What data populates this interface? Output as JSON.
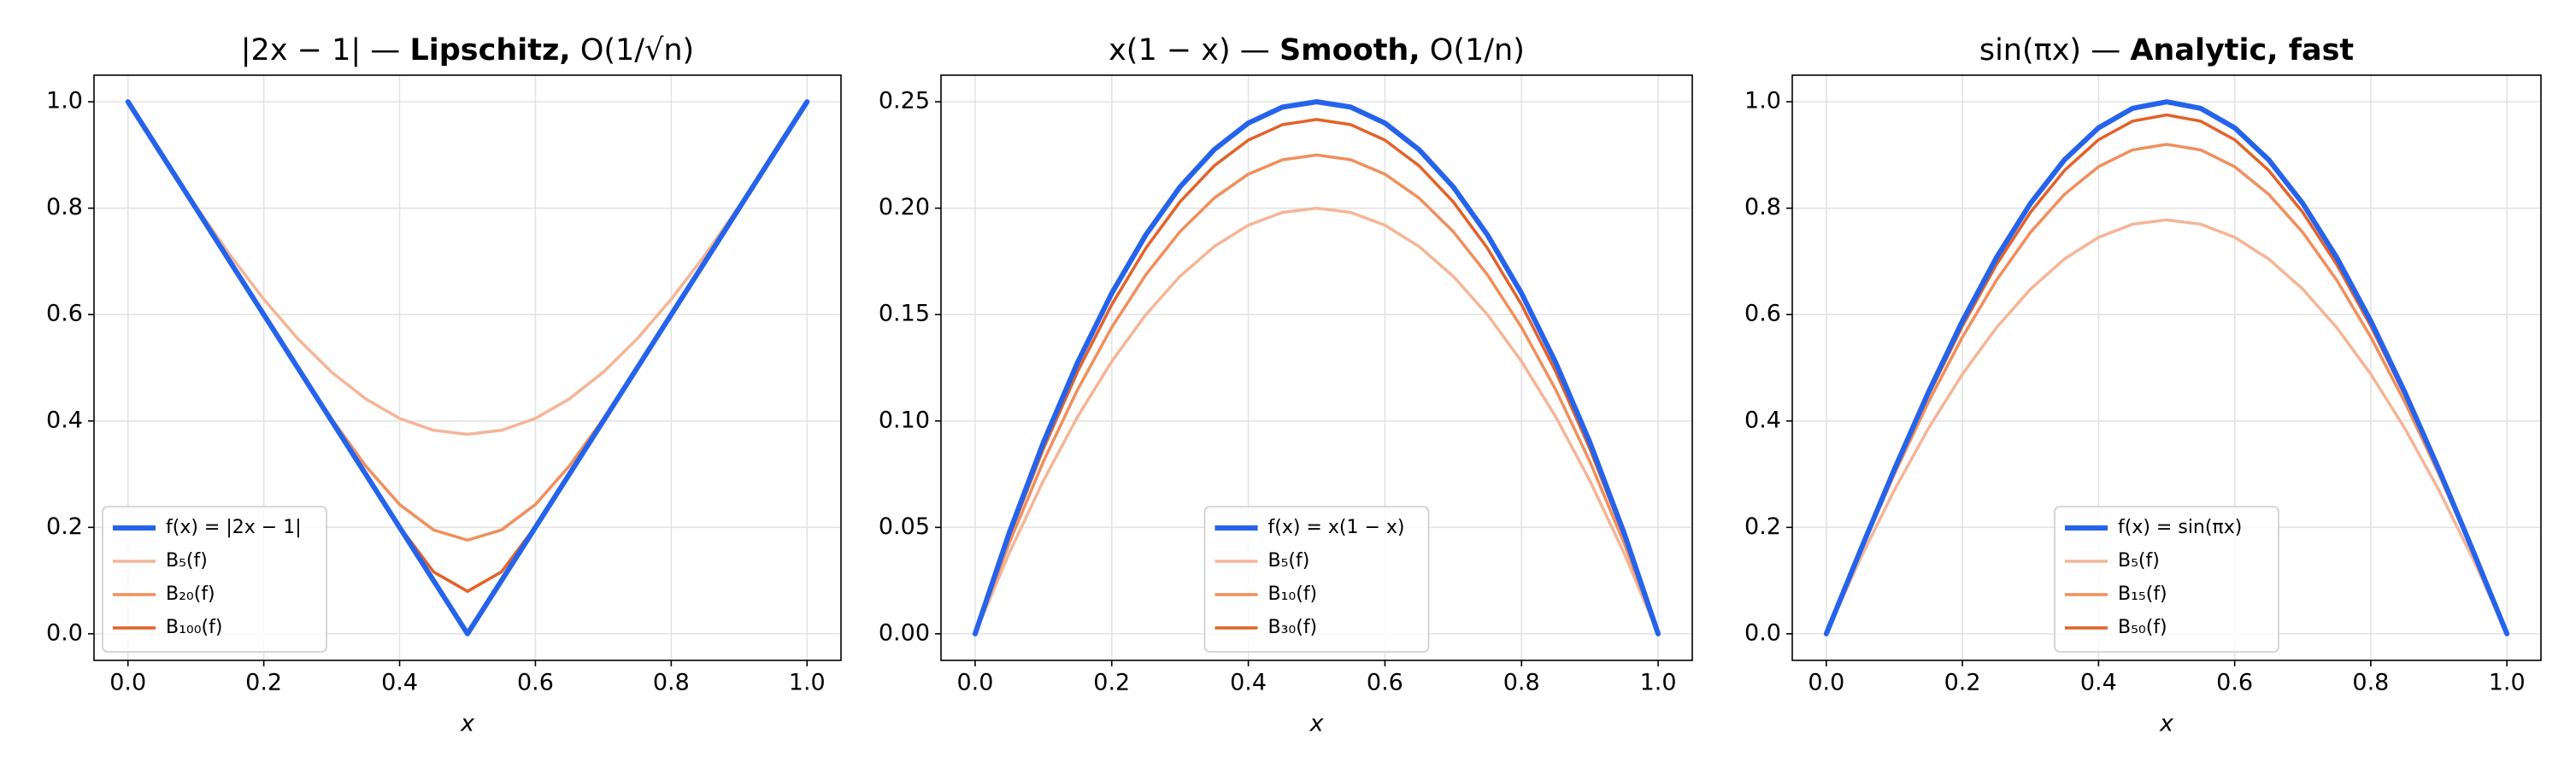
{
  "chart_data": [
    {
      "type": "line",
      "title": [
        {
          "text": "|2x − 1| — ",
          "bold": false
        },
        {
          "text": "Lipschitz,",
          "bold": true
        },
        {
          "text": " O(1/√n)",
          "bold": false
        }
      ],
      "x_label": "x",
      "x": [
        0,
        0.05,
        0.1,
        0.15,
        0.2,
        0.25,
        0.3,
        0.35,
        0.4,
        0.45,
        0.5,
        0.55,
        0.6,
        0.65,
        0.7,
        0.75,
        0.8,
        0.85,
        0.9,
        0.95,
        1
      ],
      "series": [
        {
          "name": "f(x) = |2x − 1|",
          "color": "#2563eb",
          "width": 6,
          "values": [
            1,
            0.9,
            0.8,
            0.7,
            0.6,
            0.5,
            0.4,
            0.3,
            0.2,
            0.1,
            0,
            0.1,
            0.2,
            0.3,
            0.4,
            0.5,
            0.6,
            0.7,
            0.8,
            0.9,
            1
          ]
        },
        {
          "name": "B₅(f)",
          "color": "#f5b596",
          "width": 3.5,
          "values": [
            1,
            0.9005,
            0.804,
            0.7125,
            0.6288,
            0.5547,
            0.4918,
            0.4415,
            0.4048,
            0.3825,
            0.375,
            0.3825,
            0.4048,
            0.4415,
            0.4918,
            0.5547,
            0.6288,
            0.7125,
            0.804,
            0.9005,
            1
          ]
        },
        {
          "name": "B₂₀(f)",
          "color": "#f08f5c",
          "width": 3.5,
          "values": [
            1,
            0.9,
            0.8,
            0.7,
            0.6,
            0.5006,
            0.4039,
            0.3154,
            0.243,
            0.1952,
            0.176,
            0.1952,
            0.243,
            0.3154,
            0.4039,
            0.5006,
            0.6,
            0.7,
            0.8,
            0.9,
            1
          ]
        },
        {
          "name": "B₁₀₀(f)",
          "color": "#e2622a",
          "width": 3.5,
          "values": [
            1,
            0.9,
            0.8,
            0.7,
            0.6,
            0.5,
            0.4,
            0.3,
            0.2015,
            0.1164,
            0.0798,
            0.1164,
            0.2015,
            0.3,
            0.4,
            0.5,
            0.6,
            0.7,
            0.8,
            0.9,
            1
          ]
        }
      ],
      "xlim": [
        -0.05,
        1.05
      ],
      "ylim": [
        -0.05,
        1.05
      ],
      "xticks": [
        {
          "value": 0,
          "label": "0.0"
        },
        0.2,
        0.4,
        0.6,
        0.8,
        {
          "value": 1,
          "label": "1.0"
        }
      ],
      "yticks": [
        {
          "value": 0,
          "label": "0.0"
        },
        0.2,
        0.4,
        0.6,
        0.8,
        {
          "value": 1,
          "label": "1.0"
        }
      ],
      "grid": true,
      "legend": "lower left"
    },
    {
      "type": "line",
      "title": [
        {
          "text": "x(1 − x) — ",
          "bold": false
        },
        {
          "text": "Smooth,",
          "bold": true
        },
        {
          "text": " O(1/n)",
          "bold": false
        }
      ],
      "x_label": "x",
      "x": [
        0,
        0.05,
        0.1,
        0.15,
        0.2,
        0.25,
        0.3,
        0.35,
        0.4,
        0.45,
        0.5,
        0.55,
        0.6,
        0.65,
        0.7,
        0.75,
        0.8,
        0.85,
        0.9,
        0.95,
        1
      ],
      "series": [
        {
          "name": "f(x) = x(1 − x)",
          "color": "#2563eb",
          "width": 6,
          "values": [
            0,
            0.0475,
            0.09,
            0.1275,
            0.16,
            0.1875,
            0.21,
            0.2275,
            0.24,
            0.2475,
            0.25,
            0.2475,
            0.24,
            0.2275,
            0.21,
            0.1875,
            0.16,
            0.1275,
            0.09,
            0.0475,
            0
          ]
        },
        {
          "name": "B₅(f)",
          "color": "#f5b596",
          "width": 3.5,
          "values": [
            0,
            0.038,
            0.072,
            0.102,
            0.128,
            0.15,
            0.168,
            0.182,
            0.192,
            0.198,
            0.2,
            0.198,
            0.192,
            0.182,
            0.168,
            0.15,
            0.128,
            0.102,
            0.072,
            0.038,
            0
          ]
        },
        {
          "name": "B₁₀(f)",
          "color": "#f08f5c",
          "width": 3.5,
          "values": [
            0,
            0.04275,
            0.081,
            0.11475,
            0.144,
            0.16875,
            0.189,
            0.20475,
            0.216,
            0.22275,
            0.225,
            0.22275,
            0.216,
            0.20475,
            0.189,
            0.16875,
            0.144,
            0.11475,
            0.081,
            0.04275,
            0
          ]
        },
        {
          "name": "B₃₀(f)",
          "color": "#e2622a",
          "width": 3.5,
          "values": [
            0,
            0.04592,
            0.087,
            0.12325,
            0.15467,
            0.18125,
            0.203,
            0.21992,
            0.232,
            0.23925,
            0.24167,
            0.23925,
            0.232,
            0.21992,
            0.203,
            0.18125,
            0.15467,
            0.12325,
            0.087,
            0.04592,
            0
          ]
        }
      ],
      "xlim": [
        -0.05,
        1.05
      ],
      "ylim": [
        -0.0125,
        0.2625
      ],
      "xticks": [
        {
          "value": 0,
          "label": "0.0"
        },
        0.2,
        0.4,
        0.6,
        0.8,
        {
          "value": 1,
          "label": "1.0"
        }
      ],
      "yticks": [
        {
          "value": 0,
          "label": "0.00"
        },
        0.05,
        {
          "value": 0.1,
          "label": "0.10"
        },
        0.15,
        {
          "value": 0.2,
          "label": "0.20"
        },
        0.25
      ],
      "grid": true,
      "legend": "lower center"
    },
    {
      "type": "line",
      "title": [
        {
          "text": "sin(πx) — ",
          "bold": false
        },
        {
          "text": "Analytic, fast",
          "bold": true
        }
      ],
      "x_label": "x",
      "x": [
        0,
        0.05,
        0.1,
        0.15,
        0.2,
        0.25,
        0.3,
        0.35,
        0.4,
        0.45,
        0.5,
        0.55,
        0.6,
        0.65,
        0.7,
        0.75,
        0.8,
        0.85,
        0.9,
        0.95,
        1
      ],
      "series": [
        {
          "name": "f(x) = sin(πx)",
          "color": "#2563eb",
          "width": 6,
          "values": [
            0,
            0.1564,
            0.309,
            0.454,
            0.5878,
            0.7071,
            0.809,
            0.891,
            0.9511,
            0.9877,
            1,
            0.9877,
            0.9511,
            0.891,
            0.809,
            0.7071,
            0.5878,
            0.454,
            0.309,
            0.1564,
            0
          ]
        },
        {
          "name": "B₅(f)",
          "color": "#f5b596",
          "width": 3.5,
          "values": [
            0,
            0.1412,
            0.2701,
            0.386,
            0.488,
            0.5755,
            0.6478,
            0.7046,
            0.7453,
            0.7699,
            0.7781,
            0.7699,
            0.7453,
            0.7046,
            0.6478,
            0.5755,
            0.488,
            0.386,
            0.2701,
            0.1412,
            0
          ]
        },
        {
          "name": "B₁₅(f)",
          "color": "#f08f5c",
          "width": 3.5,
          "values": [
            0,
            0.154,
            0.3001,
            0.4355,
            0.5577,
            0.6647,
            0.7546,
            0.8261,
            0.878,
            0.9095,
            0.92,
            0.9095,
            0.878,
            0.8261,
            0.7546,
            0.6647,
            0.5577,
            0.4355,
            0.3001,
            0.154,
            0
          ]
        },
        {
          "name": "B₅₀(f)",
          "color": "#e2622a",
          "width": 3.5,
          "values": [
            0,
            0.1557,
            0.3062,
            0.4483,
            0.5785,
            0.694,
            0.7923,
            0.871,
            0.9286,
            0.9636,
            0.9753,
            0.9636,
            0.9286,
            0.871,
            0.7923,
            0.694,
            0.5785,
            0.4483,
            0.3062,
            0.1557,
            0
          ]
        }
      ],
      "xlim": [
        -0.05,
        1.05
      ],
      "ylim": [
        -0.05,
        1.05
      ],
      "xticks": [
        {
          "value": 0,
          "label": "0.0"
        },
        0.2,
        0.4,
        0.6,
        0.8,
        {
          "value": 1,
          "label": "1.0"
        }
      ],
      "yticks": [
        {
          "value": 0,
          "label": "0.0"
        },
        0.2,
        0.4,
        0.6,
        0.8,
        {
          "value": 1,
          "label": "1.0"
        }
      ],
      "grid": true,
      "legend": "lower center"
    }
  ]
}
